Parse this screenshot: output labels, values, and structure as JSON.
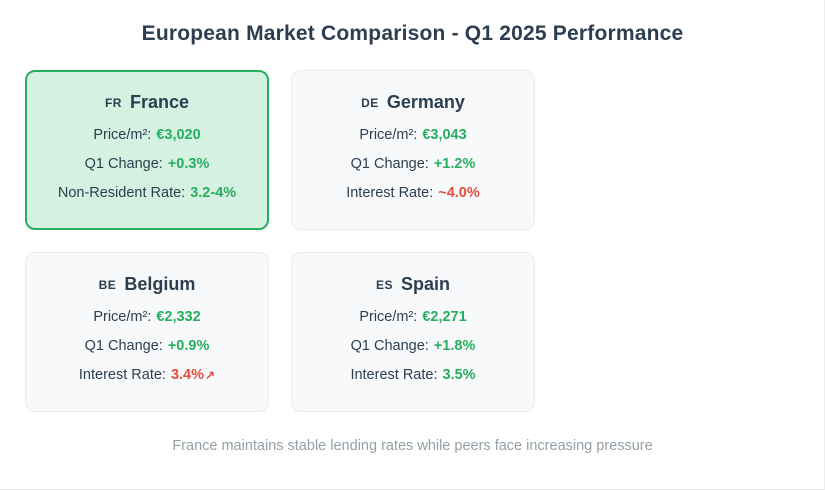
{
  "title": "European Market Comparison - Q1 2025 Performance",
  "footer": "France maintains stable lending rates while peers face increasing pressure",
  "colors": {
    "positive": "#27ae60",
    "negative": "#e74c3c",
    "heading": "#2c3e50",
    "highlight_bg": "#d4f1e1",
    "highlight_border": "#27ae60",
    "card_bg": "#f8f9fa",
    "card_border": "#e9ecef",
    "footer_text": "#95a0a6"
  },
  "cards": [
    {
      "code": "FR",
      "name": "France",
      "highlighted": true,
      "rows": [
        {
          "label": "Price/m²:",
          "value": "€3,020",
          "color": "green"
        },
        {
          "label": "Q1 Change:",
          "value": "+0.3%",
          "color": "green"
        },
        {
          "label": "Non-Resident Rate:",
          "value": "3.2-4%",
          "color": "green"
        }
      ]
    },
    {
      "code": "DE",
      "name": "Germany",
      "highlighted": false,
      "rows": [
        {
          "label": "Price/m²:",
          "value": "€3,043",
          "color": "green"
        },
        {
          "label": "Q1 Change:",
          "value": "+1.2%",
          "color": "green"
        },
        {
          "label": "Interest Rate:",
          "value": "~4.0%",
          "color": "red"
        }
      ]
    },
    {
      "code": "BE",
      "name": "Belgium",
      "highlighted": false,
      "rows": [
        {
          "label": "Price/m²:",
          "value": "€2,332",
          "color": "green"
        },
        {
          "label": "Q1 Change:",
          "value": "+0.9%",
          "color": "green"
        },
        {
          "label": "Interest Rate:",
          "value": "3.4%",
          "color": "red",
          "trend_icon": "↗"
        }
      ]
    },
    {
      "code": "ES",
      "name": "Spain",
      "highlighted": false,
      "rows": [
        {
          "label": "Price/m²:",
          "value": "€2,271",
          "color": "green"
        },
        {
          "label": "Q1 Change:",
          "value": "+1.8%",
          "color": "green"
        },
        {
          "label": "Interest Rate:",
          "value": "3.5%",
          "color": "green"
        }
      ]
    }
  ]
}
